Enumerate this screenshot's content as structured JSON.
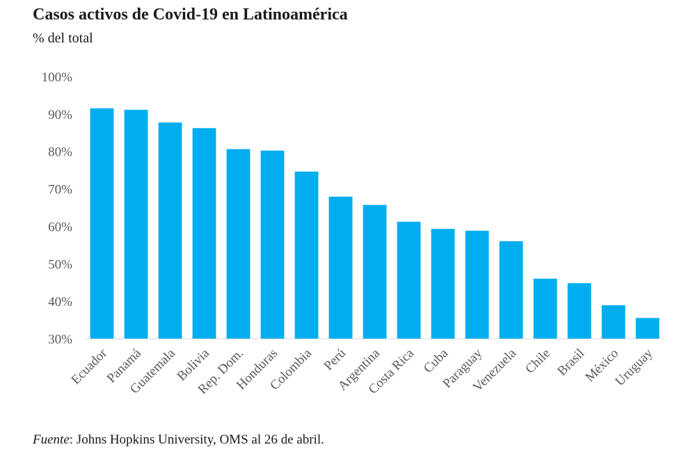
{
  "title": "Casos activos de Covid-19 en Latinoamérica",
  "subtitle": "% del total",
  "source": {
    "label": "Fuente",
    "separator": ":",
    "text": " Johns Hopkins University, OMS al 26 de abril."
  },
  "colors": {
    "bar": "#00AEEF",
    "axis": "#d9d9d9",
    "tick_text": "#595959"
  },
  "chart_data": {
    "type": "bar",
    "title": "Casos activos de Covid-19 en Latinoamérica",
    "subtitle": "% del total",
    "xlabel": "",
    "ylabel": "",
    "ylim": [
      30,
      100
    ],
    "ytick_step": 10,
    "ytick_suffix": "%",
    "grid": false,
    "legend": "none",
    "categories": [
      "Ecuador",
      "Panamá",
      "Guatemala",
      "Bolivia",
      "Rep. Dom.",
      "Honduras",
      "Colombia",
      "Perú",
      "Argentina",
      "Costa Rica",
      "Cuba",
      "Paraguay",
      "Venezuela",
      "Chile",
      "Brasil",
      "México",
      "Uruguay"
    ],
    "values": [
      91.5,
      91.1,
      87.7,
      86.2,
      80.6,
      80.2,
      74.6,
      67.9,
      65.7,
      61.2,
      59.3,
      58.8,
      56.0,
      46.0,
      44.8,
      38.9,
      35.5
    ]
  }
}
